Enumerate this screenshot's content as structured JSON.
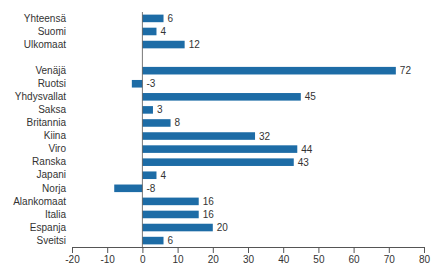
{
  "chart_data": {
    "type": "bar",
    "orientation": "horizontal",
    "categories": [
      "Yhteensä",
      "Suomi",
      "Ulkomaat",
      null,
      "Venäjä",
      "Ruotsi",
      "Yhdysvallat",
      "Saksa",
      "Britannia",
      "Kiina",
      "Viro",
      "Ranska",
      "Japani",
      "Norja",
      "Alankomaat",
      "Italia",
      "Espanja",
      "Sveitsi"
    ],
    "values": [
      6,
      4,
      12,
      null,
      72,
      -3,
      45,
      3,
      8,
      32,
      44,
      43,
      4,
      -8,
      16,
      16,
      20,
      6
    ],
    "color": "#1d6ca6",
    "xlim": [
      -20,
      80
    ],
    "xticks": [
      -20,
      -10,
      0,
      10,
      20,
      30,
      40,
      50,
      60,
      70,
      80
    ],
    "grid": false,
    "data_labels": true
  }
}
